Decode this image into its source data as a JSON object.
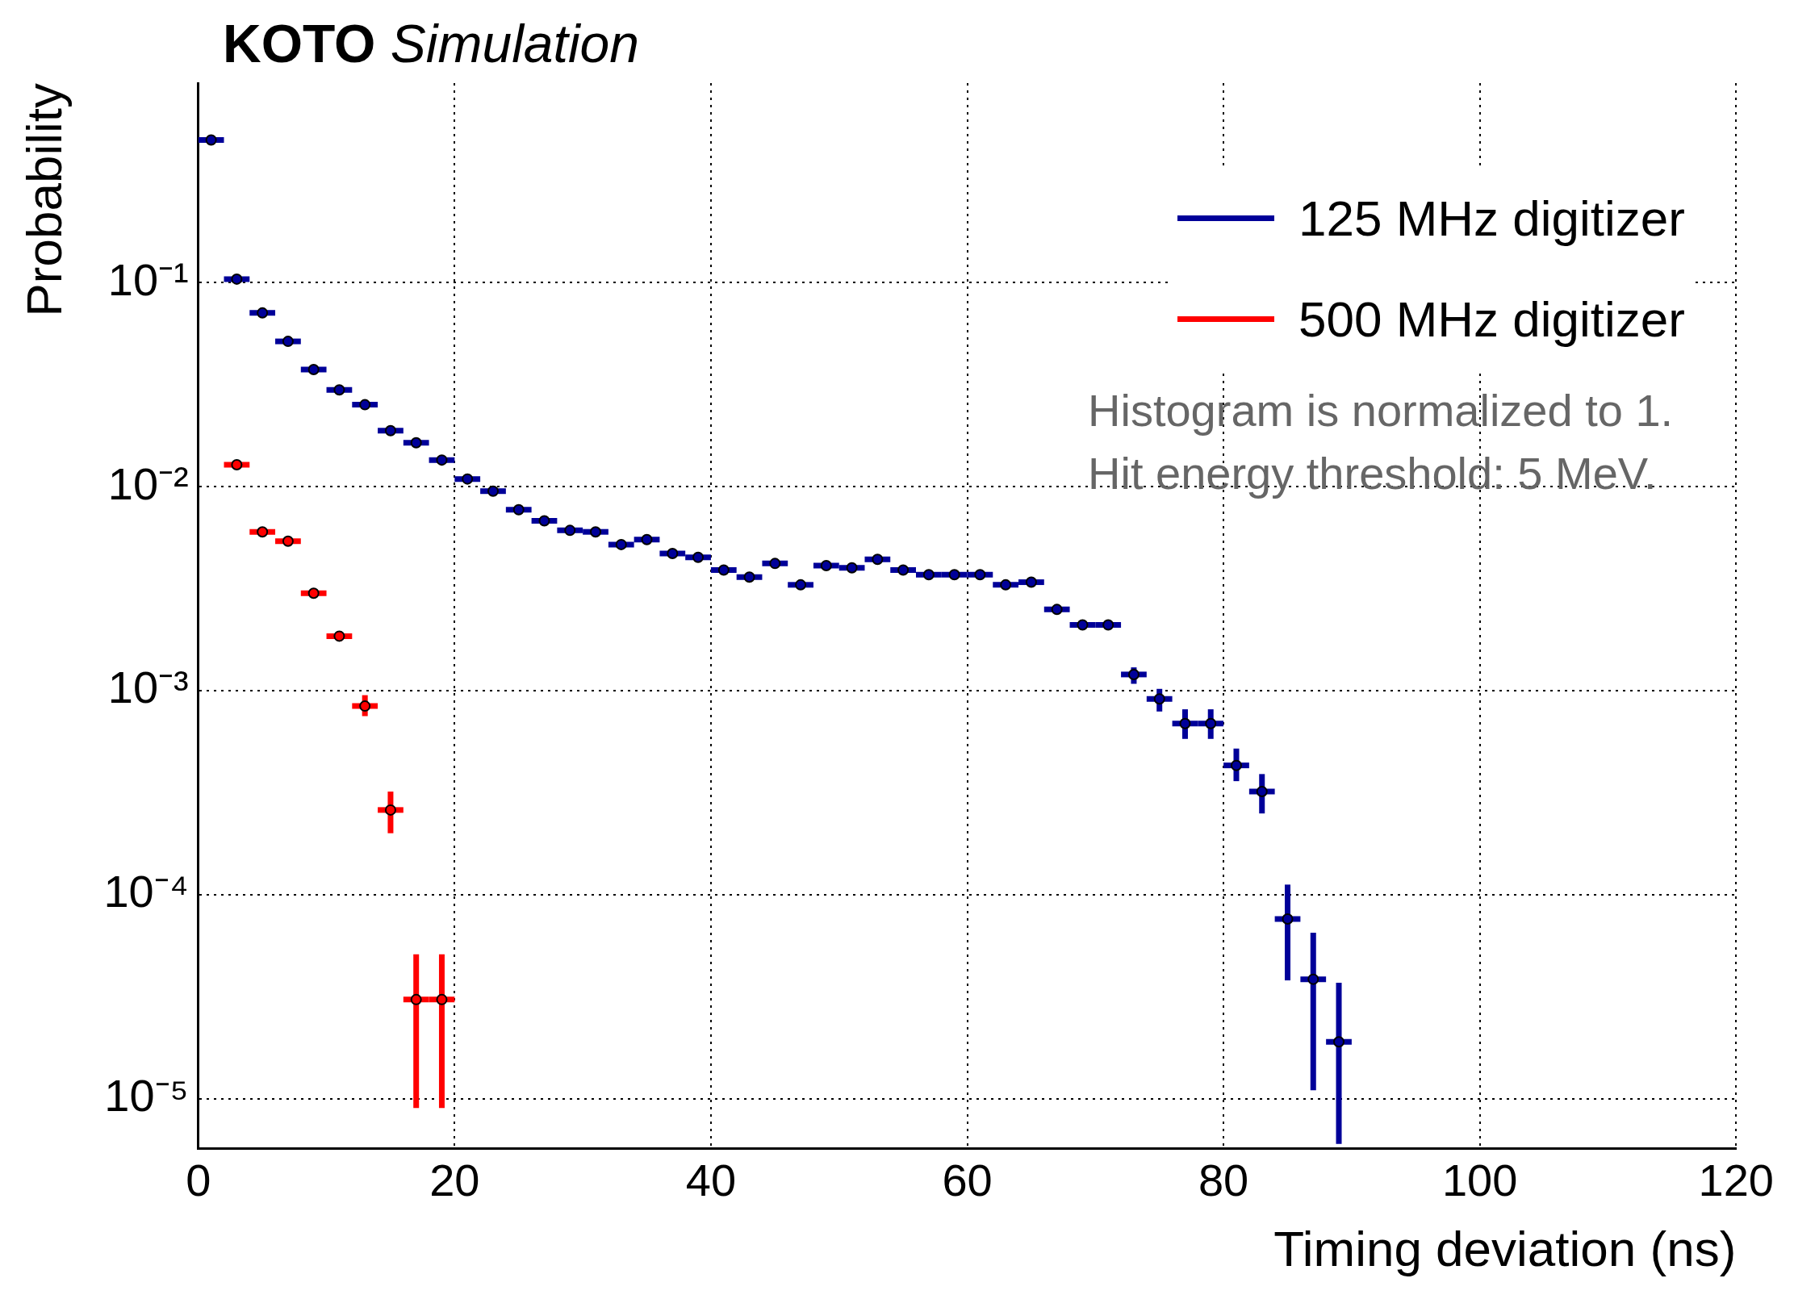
{
  "chart_data": {
    "type": "scatter",
    "title": "KOTO Simulation",
    "xlabel": "Timing deviation (ns)",
    "ylabel": "Probability",
    "marker": "circle",
    "x": [
      1,
      3,
      5,
      7,
      9,
      11,
      13,
      15,
      17,
      19,
      21,
      23,
      25,
      27,
      29,
      31,
      33,
      35,
      37,
      39,
      41,
      43,
      45,
      47,
      49,
      51,
      53,
      55,
      57,
      59,
      61,
      63,
      65,
      67,
      69,
      71,
      73,
      75,
      77,
      79,
      81,
      83,
      85,
      87,
      89
    ],
    "series": [
      {
        "name": "125 MHz digitizer",
        "color": "#000099",
        "xerrors": [
          1,
          1,
          1,
          1,
          1,
          1,
          1,
          1,
          1,
          1,
          1,
          1,
          1,
          1,
          1,
          1,
          1,
          1,
          1,
          1,
          1,
          1,
          1,
          1,
          1,
          1,
          1,
          1,
          1,
          1,
          1,
          1,
          1,
          1,
          1,
          1,
          1,
          1,
          1,
          1,
          1,
          1,
          1,
          1,
          1
        ],
        "values": [
          0.5,
          0.104,
          0.071,
          0.0515,
          0.0375,
          0.0298,
          0.0252,
          0.0188,
          0.0164,
          0.0135,
          0.0109,
          0.0095,
          0.0077,
          0.0068,
          0.0061,
          0.006,
          0.0052,
          0.0055,
          0.0047,
          0.0045,
          0.0039,
          0.0036,
          0.0042,
          0.0033,
          0.0041,
          0.004,
          0.0044,
          0.0039,
          0.0037,
          0.0037,
          0.0037,
          0.0033,
          0.0034,
          0.0025,
          0.0021,
          0.0021,
          0.0012,
          0.00091,
          0.00069,
          0.00069,
          0.00043,
          0.00032,
          7.6e-05,
          3.85e-05,
          1.9e-05
        ],
        "errors": [
          null,
          null,
          null,
          null,
          null,
          null,
          null,
          null,
          null,
          null,
          null,
          null,
          null,
          null,
          null,
          null,
          null,
          null,
          null,
          null,
          null,
          null,
          null,
          null,
          null,
          null,
          null,
          null,
          null,
          null,
          null,
          null,
          null,
          null,
          null,
          null,
          [
            0.00108,
            0.0013
          ],
          [
            0.00079,
            0.00102
          ],
          [
            0.00058,
            0.00081
          ],
          [
            0.00058,
            0.00081
          ],
          [
            0.00036,
            0.00052
          ],
          [
            0.00025,
            0.00039
          ],
          [
            3.8e-05,
            0.000112
          ],
          [
            1.1e-05,
            6.5e-05
          ],
          [
            6e-06,
            3.7e-05
          ]
        ]
      },
      {
        "name": "500 MHz digitizer",
        "color": "#ff0000",
        "xerrors": [
          null,
          1,
          1,
          1,
          1,
          1,
          1,
          1,
          1,
          1,
          null,
          null,
          null,
          null,
          null,
          null,
          null,
          null,
          null,
          null,
          null,
          null,
          null,
          null,
          null,
          null,
          null,
          null,
          null,
          null,
          null,
          null,
          null,
          null,
          null,
          null,
          null,
          null,
          null,
          null,
          null,
          null,
          null,
          null,
          null
        ],
        "values": [
          null,
          0.0128,
          0.006,
          0.0054,
          0.003,
          0.00185,
          0.00084,
          0.00026,
          3.06e-05,
          3.06e-05,
          null,
          null,
          null,
          null,
          null,
          null,
          null,
          null,
          null,
          null,
          null,
          null,
          null,
          null,
          null,
          null,
          null,
          null,
          null,
          null,
          null,
          null,
          null,
          null,
          null,
          null,
          null,
          null,
          null,
          null,
          null,
          null,
          null,
          null,
          null
        ],
        "errors": [
          null,
          null,
          null,
          null,
          null,
          [
            0.00175,
            0.00195
          ],
          [
            0.00075,
            0.00095
          ],
          [
            0.0002,
            0.00032
          ],
          [
            9e-06,
            5.1e-05
          ],
          [
            9e-06,
            5.1e-05
          ],
          null,
          null,
          null,
          null,
          null,
          null,
          null,
          null,
          null,
          null,
          null,
          null,
          null,
          null,
          null,
          null,
          null,
          null,
          null,
          null,
          null,
          null,
          null,
          null,
          null,
          null,
          null,
          null,
          null,
          null,
          null,
          null,
          null,
          null,
          null
        ]
      }
    ],
    "xlim": [
      0,
      120
    ],
    "xticks": [
      0,
      20,
      40,
      60,
      80,
      100,
      120
    ],
    "ylim": [
      5.7e-06,
      0.95
    ],
    "yticks": [
      {
        "value": 1e-05,
        "label": "10⁻⁵"
      },
      {
        "value": 0.0001,
        "label": "10⁻⁴"
      },
      {
        "value": 0.001,
        "label": "10⁻³"
      },
      {
        "value": 0.01,
        "label": "10⁻²"
      },
      {
        "value": 0.1,
        "label": "10⁻¹"
      }
    ],
    "log": "y",
    "grid": true,
    "legend": "top right",
    "line_style": "solid",
    "annotations": [
      "Histogram is normalized to 1.",
      "Hit energy threshold: 5 MeV."
    ]
  }
}
